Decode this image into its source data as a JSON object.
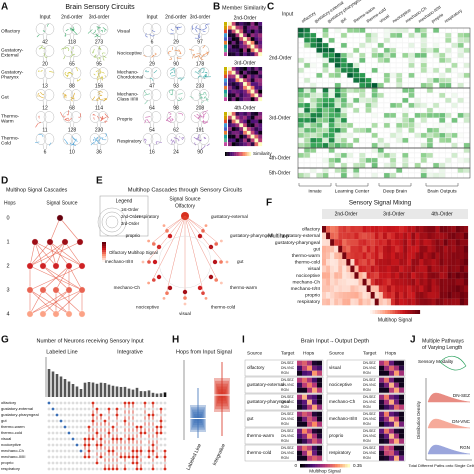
{
  "palette": [
    "#2ca25f",
    "#8fbc3b",
    "#c8b400",
    "#d69a00",
    "#e34a33",
    "#3d9bd6",
    "#4a5fc1",
    "#e6772e",
    "#1b9e9a",
    "#57b88f",
    "#c44ba3",
    "#7d4cb0"
  ],
  "panel_a": {
    "letter": "A",
    "title": "Brain Sensory Circuits",
    "left_columns": [
      "Input",
      "2nd-order",
      "3rd-order"
    ],
    "right_columns": [
      "Input",
      "2nd-order",
      "3rd-order"
    ],
    "left_rows": [
      {
        "label": "Olfactory",
        "counts": [
          42,
          118,
          273
        ]
      },
      {
        "label": "Gustatory-External",
        "counts": [
          20,
          65,
          95
        ]
      },
      {
        "label": "Gustatory-Pharynx",
        "counts": [
          13,
          88,
          156
        ]
      },
      {
        "label": "Gut",
        "counts": [
          12,
          68,
          114
        ]
      },
      {
        "label": "Thermo-Warm",
        "counts": [
          11,
          128,
          230
        ]
      },
      {
        "label": "Thermo-Cold",
        "counts": [
          6,
          10,
          36
        ]
      }
    ],
    "right_rows": [
      {
        "label": "Visual",
        "counts": [
          6,
          29,
          97
        ]
      },
      {
        "label": "Nociceptive",
        "counts": [
          29,
          90,
          178
        ]
      },
      {
        "label": "Mechano-Chordotonal",
        "counts": [
          47,
          93,
          233
        ]
      },
      {
        "label": "Mechano-Class II/III",
        "counts": [
          64,
          98,
          208
        ]
      },
      {
        "label": "Proprio",
        "counts": [
          54,
          62,
          191
        ]
      },
      {
        "label": "Respiratory",
        "counts": [
          16,
          24,
          90
        ]
      }
    ]
  },
  "panel_b": {
    "letter": "B",
    "title": "Member Similarity",
    "maps": [
      "2nd-Order",
      "3rd-Order",
      "4th-Order"
    ],
    "colorbar": "Similarity"
  },
  "panel_c": {
    "letter": "C",
    "header": "Input",
    "columns": [
      "olfactory",
      "gustatory-external",
      "gustatory-pharyngeal",
      "gut",
      "thermo-warm",
      "thermo-cold",
      "visual",
      "nociceptive",
      "mechano-Ch",
      "mechano-II/III",
      "proprio",
      "respiratory"
    ],
    "row_groups": [
      "2nd-Order",
      "3rd-Order",
      "4th-Order",
      "5th-Order"
    ],
    "regions": [
      "Innate",
      "Learning Center",
      "Deep Brain",
      "Brain Outputs"
    ]
  },
  "panel_d": {
    "letter": "D",
    "title": "Multihop Signal Cascades",
    "hops_label": "Hops",
    "source_label": "Signal Source",
    "hops": [
      0,
      1,
      2,
      3,
      4
    ]
  },
  "panel_e": {
    "letter": "E",
    "title": "Multihop Cascades through Sensory Circuits",
    "legend": {
      "title": "Legend",
      "orders": [
        "1st-Order",
        "2nd-Order",
        "3rd-Order"
      ],
      "signal": "Olfactory Multihop Signal"
    },
    "source_label": "Signal Source",
    "source": "Olfactory",
    "labels": [
      "gustatory-external",
      "gustatory-pharyngeal",
      "gut",
      "thermo-warm",
      "thermo-cold",
      "visual",
      "nociceptive",
      "mechano-Ch",
      "mechano-II/III",
      "proprio",
      "respiratory"
    ]
  },
  "panel_f": {
    "letter": "F",
    "title": "Sensory Signal Mixing",
    "row_header": "Multihop",
    "column_groups": [
      "2nd-Order",
      "3rd-Order",
      "4th-Order"
    ],
    "rows": [
      "olfactory",
      "gustatory-external",
      "gustatory-pharyngeal",
      "gut",
      "thermo-warm",
      "thermo-cold",
      "visual",
      "nociceptive",
      "mechano-Ch",
      "mechano-II/III",
      "proprio",
      "respiratory"
    ],
    "colorbar": "Multihop Signal"
  },
  "panel_g": {
    "letter": "G",
    "title": "Number of Neurons receiving Sensory Input",
    "groups": [
      "Labeled Line",
      "Integrative"
    ],
    "rows": [
      "olfactory",
      "gustatory-external",
      "gustatory-pharyngeal",
      "gut",
      "thermo-warm",
      "thermo-cold",
      "visual",
      "nociceptive",
      "mechano-Ch",
      "mechano-II/III",
      "proprio",
      "respiratory"
    ]
  },
  "panel_h": {
    "letter": "H",
    "title": "Hops from Input Signal",
    "groups": [
      "Labeled Line",
      "Integrative"
    ]
  },
  "panel_i": {
    "letter": "I",
    "title": "Brain Input→Output Depth",
    "headers": [
      "Source",
      "Target",
      "Hops"
    ],
    "targets": [
      "DN-SEZ",
      "DN-VNC",
      "RGN"
    ],
    "left_sources": [
      "olfactory",
      "gustatory-external",
      "gustatory-pharyngeal",
      "gut",
      "thermo-warm",
      "thermo-cold"
    ],
    "right_sources": [
      "visual",
      "nociceptive",
      "mechano-Ch",
      "mechano-II/III",
      "proprio",
      "respiratory"
    ],
    "colorbar": {
      "label": "Multihop Signal",
      "min": 0,
      "max": 0.35
    }
  },
  "panel_j": {
    "letter": "J",
    "title_lines": [
      "Multiple Pathways",
      "of Varying Length"
    ],
    "source": "Sensory Modality",
    "targets": [
      "DN-SEZ",
      "DN-VNC",
      "RGN"
    ],
    "y_label": "Distribution Density",
    "x_label": "Total Different Paths onto Single Cells"
  }
}
